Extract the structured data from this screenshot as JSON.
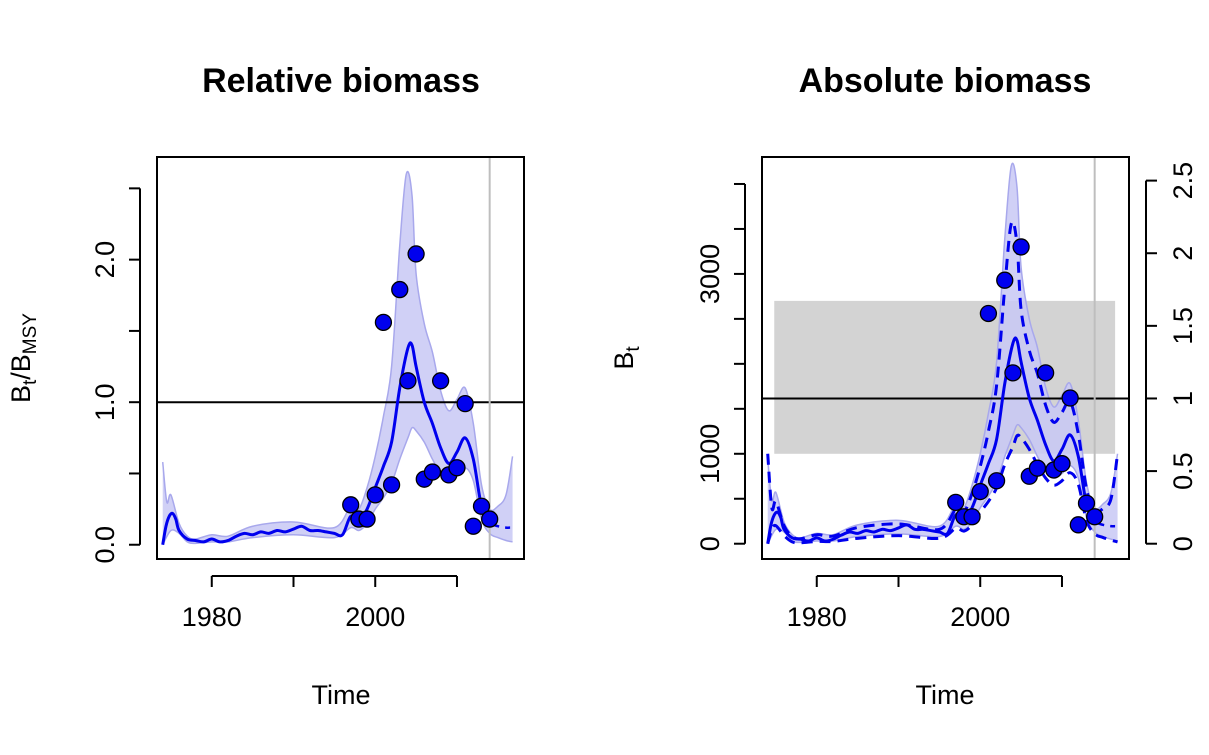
{
  "chart_data": [
    {
      "type": "line",
      "title": "Relative biomass",
      "xlabel": "Time",
      "ylabel": {
        "main": "B",
        "sub1": "t",
        "slash": "/B",
        "sub2": "MSY"
      },
      "xlim": [
        1973.3,
        2018.2
      ],
      "ylim": [
        -0.1,
        2.72
      ],
      "x_ticks": [
        1980,
        1990,
        2000,
        2010
      ],
      "x_tick_labels": [
        "1980",
        "",
        "2000",
        ""
      ],
      "y_ticks": [
        0.0,
        0.5,
        1.0,
        1.5,
        2.0,
        2.5
      ],
      "y_tick_labels": [
        "0.0",
        "",
        "1.0",
        "",
        "2.0",
        ""
      ],
      "reference_line": {
        "y": 1.0,
        "color": "#000000"
      },
      "vertical_line": {
        "x": 2014.0,
        "color": "#bebebe"
      },
      "colors": {
        "line": "#0000ee",
        "band": "#c8c8f4",
        "band_edge": "#a8a8ec",
        "points": "#0000ee"
      },
      "series": [
        {
          "role": "estimate",
          "x": [
            1974,
            1974.4,
            1974.8,
            1975.2,
            1975.6,
            1976,
            1977,
            1978,
            1979,
            1980,
            1981,
            1982,
            1983,
            1984,
            1985,
            1986,
            1987,
            1988,
            1989,
            1990,
            1991,
            1992,
            1993,
            1994,
            1995,
            1996,
            1997,
            1998,
            1999,
            2000,
            2001,
            2002,
            2003,
            2004,
            2004.5,
            2005,
            2006,
            2007,
            2008,
            2009,
            2010,
            2011,
            2012,
            2013,
            2014
          ],
          "y": [
            0.0,
            0.13,
            0.2,
            0.22,
            0.18,
            0.1,
            0.04,
            0.03,
            0.02,
            0.04,
            0.02,
            0.03,
            0.06,
            0.08,
            0.07,
            0.09,
            0.08,
            0.1,
            0.09,
            0.11,
            0.13,
            0.1,
            0.1,
            0.09,
            0.08,
            0.07,
            0.2,
            0.17,
            0.25,
            0.4,
            0.55,
            0.72,
            1.1,
            1.38,
            1.4,
            1.25,
            1.0,
            0.85,
            0.68,
            0.57,
            0.65,
            0.75,
            0.6,
            0.27,
            0.15
          ],
          "dash": "solid"
        },
        {
          "role": "forecast",
          "x": [
            2014,
            2015,
            2016,
            2016.5
          ],
          "y": [
            0.15,
            0.13,
            0.12,
            0.12
          ],
          "dash": "dashed"
        },
        {
          "role": "ci_lower",
          "x": [
            1974,
            1975,
            1976,
            1977,
            1978,
            1980,
            1982,
            1985,
            1990,
            1995,
            1997,
            1998,
            1999,
            2000,
            2001,
            2002,
            2003,
            2004,
            2004.5,
            2005,
            2006,
            2007,
            2008,
            2009,
            2010,
            2011,
            2012,
            2013,
            2014,
            2015,
            2016,
            2016.8
          ],
          "y": [
            0.0,
            0.1,
            0.08,
            0.02,
            0.01,
            0.02,
            0.02,
            0.05,
            0.07,
            0.05,
            0.12,
            0.1,
            0.15,
            0.25,
            0.33,
            0.43,
            0.6,
            0.75,
            0.82,
            0.8,
            0.72,
            0.6,
            0.5,
            0.45,
            0.48,
            0.54,
            0.45,
            0.18,
            0.08,
            0.05,
            0.03,
            0.02
          ]
        },
        {
          "role": "ci_upper",
          "x": [
            1974,
            1974.5,
            1975,
            1976,
            1977,
            1978,
            1980,
            1982,
            1985,
            1990,
            1995,
            1997,
            1998,
            1999,
            2000,
            2001,
            2002,
            2003,
            2003.8,
            2004.5,
            2005,
            2006,
            2007,
            2008,
            2009,
            2010,
            2011,
            2012,
            2013,
            2014,
            2015,
            2016,
            2016.8
          ],
          "y": [
            0.58,
            0.3,
            0.35,
            0.15,
            0.06,
            0.04,
            0.07,
            0.06,
            0.13,
            0.16,
            0.12,
            0.27,
            0.25,
            0.4,
            0.62,
            0.9,
            1.25,
            2.1,
            2.6,
            2.45,
            1.9,
            1.55,
            1.35,
            1.08,
            0.94,
            1.02,
            1.1,
            0.85,
            0.42,
            0.25,
            0.27,
            0.35,
            0.62
          ]
        }
      ],
      "points": {
        "x": [
          1997,
          1998,
          1999,
          2000,
          2001,
          2002,
          2003,
          2004,
          2005,
          2006,
          2007,
          2008,
          2009,
          2010,
          2011,
          2012,
          2013,
          2014
        ],
        "y": [
          0.28,
          0.18,
          0.18,
          0.35,
          1.56,
          0.42,
          1.79,
          1.15,
          2.04,
          0.46,
          0.51,
          1.15,
          0.49,
          0.54,
          0.99,
          0.13,
          0.27,
          0.18
        ]
      }
    },
    {
      "type": "line",
      "title": "Absolute biomass",
      "xlabel": "Time",
      "ylabel": {
        "main": "B",
        "sub1": "t"
      },
      "xlim": [
        1973.3,
        2018.2
      ],
      "ylim": [
        -170,
        4300
      ],
      "x_ticks": [
        1980,
        1990,
        2000,
        2010
      ],
      "x_tick_labels": [
        "1980",
        "",
        "2000",
        ""
      ],
      "y_ticks": [
        0,
        500,
        1000,
        1500,
        2000,
        2500,
        3000,
        3500,
        4000
      ],
      "y_tick_labels": [
        "0",
        "",
        "1000",
        "",
        "",
        "",
        "3000",
        "",
        ""
      ],
      "right_axis": {
        "scale_factor": 1615,
        "ticks": [
          0,
          0.5,
          1,
          1.5,
          2,
          2.5
        ],
        "tick_labels": [
          "0",
          "0.5",
          "1",
          "1.5",
          "2",
          "2.5"
        ]
      },
      "bmsy_band": {
        "lower": 1000,
        "upper": 2700,
        "x_from": 1974.8,
        "x_to": 2016.5,
        "color": "#d3d3d3"
      },
      "reference_line": {
        "y": 1615,
        "color": "#000000"
      },
      "vertical_line": {
        "x": 2014.0,
        "color": "#bebebe"
      },
      "colors": {
        "line": "#0000ee",
        "band": "#c8c8f4",
        "band_edge": "#a8a8ec",
        "points": "#0000ee"
      },
      "series": [
        {
          "role": "estimate",
          "x": [
            1974,
            1974.4,
            1974.8,
            1975.2,
            1975.6,
            1976,
            1977,
            1978,
            1979,
            1980,
            1981,
            1982,
            1983,
            1984,
            1985,
            1986,
            1987,
            1988,
            1989,
            1990,
            1991,
            1992,
            1993,
            1994,
            1995,
            1996,
            1997,
            1998,
            1999,
            2000,
            2001,
            2002,
            2003,
            2004,
            2004.5,
            2005,
            2006,
            2007,
            2008,
            2009,
            2010,
            2011,
            2012,
            2013,
            2014
          ],
          "y": [
            0,
            210,
            320,
            350,
            290,
            160,
            65,
            50,
            30,
            65,
            30,
            50,
            95,
            130,
            115,
            145,
            130,
            160,
            145,
            175,
            210,
            160,
            160,
            145,
            130,
            115,
            320,
            275,
            400,
            650,
            890,
            1160,
            1780,
            2230,
            2260,
            2020,
            1620,
            1370,
            1100,
            920,
            1050,
            1210,
            970,
            440,
            240
          ],
          "dash": "solid"
        },
        {
          "role": "forecast",
          "x": [
            2014,
            2015,
            2016,
            2016.5
          ],
          "y": [
            240,
            210,
            195,
            195
          ],
          "dash": "dashed"
        },
        {
          "role": "ci_lower",
          "x": [
            1974,
            1975,
            1976,
            1977,
            1978,
            1980,
            1982,
            1985,
            1990,
            1995,
            1997,
            1998,
            1999,
            2000,
            2001,
            2002,
            2003,
            2004,
            2004.5,
            2005,
            2006,
            2007,
            2008,
            2009,
            2010,
            2011,
            2012,
            2013,
            2014,
            2015,
            2016,
            2016.8
          ],
          "y": [
            0,
            160,
            130,
            30,
            15,
            30,
            30,
            80,
            110,
            80,
            195,
            160,
            240,
            400,
            530,
            690,
            970,
            1210,
            1320,
            1290,
            1160,
            970,
            810,
            730,
            780,
            870,
            730,
            290,
            130,
            80,
            50,
            30
          ]
        },
        {
          "role": "ci_upper",
          "x": [
            1974,
            1974.5,
            1975,
            1976,
            1977,
            1978,
            1980,
            1982,
            1985,
            1990,
            1995,
            1997,
            1998,
            1999,
            2000,
            2001,
            2002,
            2003,
            2003.8,
            2004.5,
            2005,
            2006,
            2007,
            2008,
            2009,
            2010,
            2011,
            2012,
            2013,
            2014,
            2015,
            2016,
            2016.8
          ],
          "y": [
            940,
            480,
            570,
            240,
            100,
            65,
            115,
            100,
            210,
            260,
            195,
            440,
            400,
            650,
            1000,
            1450,
            2020,
            3390,
            4200,
            3960,
            3070,
            2500,
            2180,
            1740,
            1520,
            1650,
            1780,
            1370,
            680,
            400,
            440,
            570,
            1000
          ]
        },
        {
          "role": "ci_lower_dashed",
          "x": [
            1974,
            1974.5,
            1975,
            1976,
            1977,
            1978,
            1980,
            1982,
            1985,
            1990,
            1995,
            1997,
            1998,
            1999,
            2000,
            2001,
            2002,
            2003,
            2004,
            2004.5,
            2005,
            2006,
            2007,
            2008,
            2009,
            2010,
            2011,
            2012,
            2013,
            2014,
            2015,
            2016,
            2016.8
          ],
          "y": [
            0,
            160,
            200,
            90,
            20,
            10,
            25,
            25,
            60,
            90,
            60,
            170,
            140,
            210,
            350,
            470,
            620,
            880,
            1080,
            1200,
            1180,
            1050,
            880,
            730,
            650,
            700,
            790,
            660,
            260,
            110,
            70,
            40,
            20
          ],
          "dash": "dashed"
        },
        {
          "role": "ci_upper_dashed",
          "x": [
            1974,
            1974.5,
            1975,
            1976,
            1977,
            1978,
            1980,
            1982,
            1985,
            1990,
            1995,
            1997,
            1998,
            1999,
            2000,
            2001,
            2002,
            2003,
            2003.8,
            2004.5,
            2005,
            2006,
            2007,
            2008,
            2009,
            2010,
            2011,
            2012,
            2013,
            2014,
            2015,
            2016,
            2016.8
          ],
          "y": [
            1000,
            400,
            470,
            200,
            80,
            55,
            100,
            85,
            180,
            220,
            160,
            380,
            350,
            560,
            860,
            1250,
            1760,
            2850,
            3560,
            3330,
            2600,
            2150,
            1890,
            1540,
            1350,
            1460,
            1580,
            1220,
            610,
            360,
            390,
            500,
            1000
          ],
          "dash": "dashed"
        }
      ],
      "points": {
        "x": [
          1997,
          1998,
          1999,
          2000,
          2001,
          2002,
          2003,
          2004,
          2005,
          2006,
          2007,
          2008,
          2009,
          2010,
          2011,
          2012,
          2013,
          2014
        ],
        "y": [
          460,
          300,
          300,
          580,
          2560,
          700,
          2930,
          1900,
          3300,
          750,
          840,
          1900,
          820,
          890,
          1620,
          210,
          450,
          300
        ]
      }
    }
  ]
}
